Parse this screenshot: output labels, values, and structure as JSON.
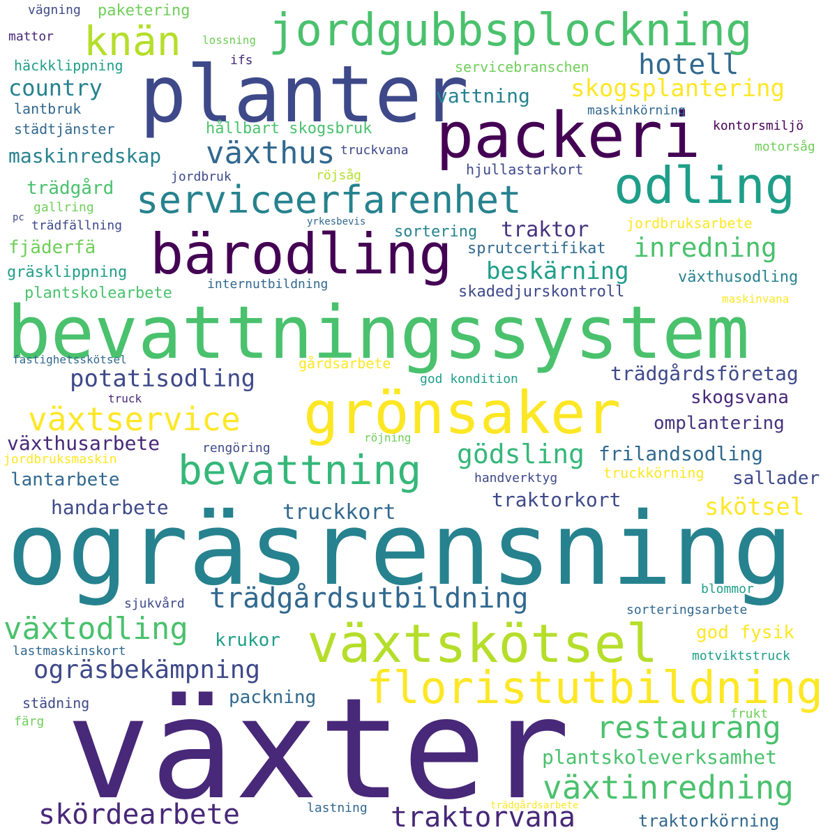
{
  "words": [
    "växter",
    "ogräsrensning",
    "bevattningssystem",
    "planter",
    "packeri",
    "jordgubbsplockning",
    "grönsaker",
    "bärodling",
    "växtskötsel",
    "odling",
    "serviceerfarenhet",
    "floristutbildning",
    "bevattning",
    "knän",
    "växtservice",
    "trädgårdsutbildning",
    "växtinredning",
    "restaurang",
    "skördearbete",
    "traktorvana",
    "växthus",
    "potatisodling",
    "växtodling",
    "ogräsbekämpning",
    "inredning",
    "beskärning",
    "hotell",
    "skogsplantering",
    "country",
    "gödsling",
    "skötsel",
    "traktorkort",
    "truckkort",
    "handarbete",
    "plantskoleverksamhet",
    "vattning",
    "maskinredskap",
    "trädgårdsföretag",
    "skogsvana",
    "omplantering",
    "växthusarbete",
    "frilandsodling",
    "lantarbete",
    "sallader",
    "traktor",
    "trädgård",
    "fjäderfä",
    "god fysik",
    "packning",
    "traktorkörning",
    "krukor",
    "plantskolearbete",
    "växthusodling",
    "gräsklippning",
    "sortering",
    "sprutcertifikat",
    "skadedjurskontroll",
    "hållbart skogsbruk",
    "jordbruksarbete",
    "paketering",
    "servicebranschen",
    "häckklippning",
    "lantbruk",
    "städtjänster",
    "mattor",
    "vägning",
    "lossning",
    "ifs",
    "maskinkörning",
    "kontorsmiljö",
    "motorsåg",
    "truckvana",
    "hjullastarkort",
    "jordbruk",
    "röjsåg",
    "gallring",
    "pc",
    "trädfällning",
    "yrkesbevis",
    "internutbildning",
    "maskinvana",
    "fastighetsskötsel",
    "gårdsarbete",
    "god kondition",
    "truck",
    "rengöring",
    "röjning",
    "jordbruksmaskin",
    "handverktyg",
    "truckkörning",
    "blommor",
    "sjukvård",
    "sorteringsarbete",
    "lastmaskinskort",
    "motviktstruck",
    "städning",
    "frukt",
    "färg",
    "lastning",
    "trädgårdsarbete"
  ]
}
